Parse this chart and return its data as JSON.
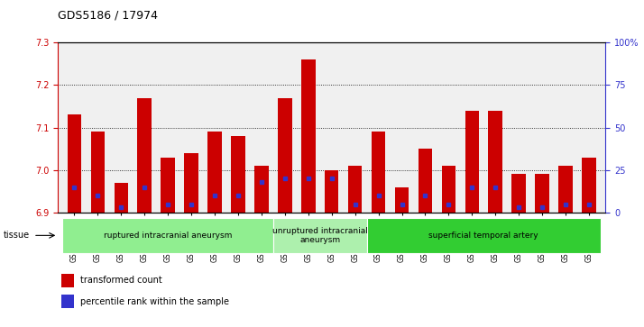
{
  "title": "GDS5186 / 17974",
  "samples": [
    "GSM1306885",
    "GSM1306886",
    "GSM1306887",
    "GSM1306888",
    "GSM1306889",
    "GSM1306890",
    "GSM1306891",
    "GSM1306892",
    "GSM1306893",
    "GSM1306894",
    "GSM1306895",
    "GSM1306896",
    "GSM1306897",
    "GSM1306898",
    "GSM1306899",
    "GSM1306900",
    "GSM1306901",
    "GSM1306902",
    "GSM1306903",
    "GSM1306904",
    "GSM1306905",
    "GSM1306906",
    "GSM1306907"
  ],
  "red_values": [
    7.13,
    7.09,
    6.97,
    7.17,
    7.03,
    7.04,
    7.09,
    7.08,
    7.01,
    7.17,
    7.26,
    7.0,
    7.01,
    7.09,
    6.96,
    7.05,
    7.01,
    7.14,
    7.14,
    6.99,
    6.99,
    7.01,
    7.03
  ],
  "blue_values": [
    15,
    10,
    3,
    15,
    5,
    5,
    10,
    10,
    18,
    20,
    20,
    20,
    5,
    10,
    5,
    10,
    5,
    15,
    15,
    3,
    3,
    5,
    5
  ],
  "ymin": 6.9,
  "ymax": 7.3,
  "yticks": [
    6.9,
    7.0,
    7.1,
    7.2,
    7.3
  ],
  "right_yticks": [
    0,
    25,
    50,
    75,
    100
  ],
  "right_yticklabels": [
    "0",
    "25",
    "50",
    "75",
    "100%"
  ],
  "groups": [
    {
      "label": "ruptured intracranial aneurysm",
      "start": 0,
      "end": 9,
      "color": "#90EE90"
    },
    {
      "label": "unruptured intracranial\naneurysm",
      "start": 9,
      "end": 13,
      "color": "#adf0ad"
    },
    {
      "label": "superficial temporal artery",
      "start": 13,
      "end": 23,
      "color": "#32CD32"
    }
  ],
  "bar_color": "#CC0000",
  "blue_color": "#3333CC",
  "bg_color": "#f0f0f0",
  "left_axis_color": "#CC0000",
  "right_axis_color": "#3333CC"
}
